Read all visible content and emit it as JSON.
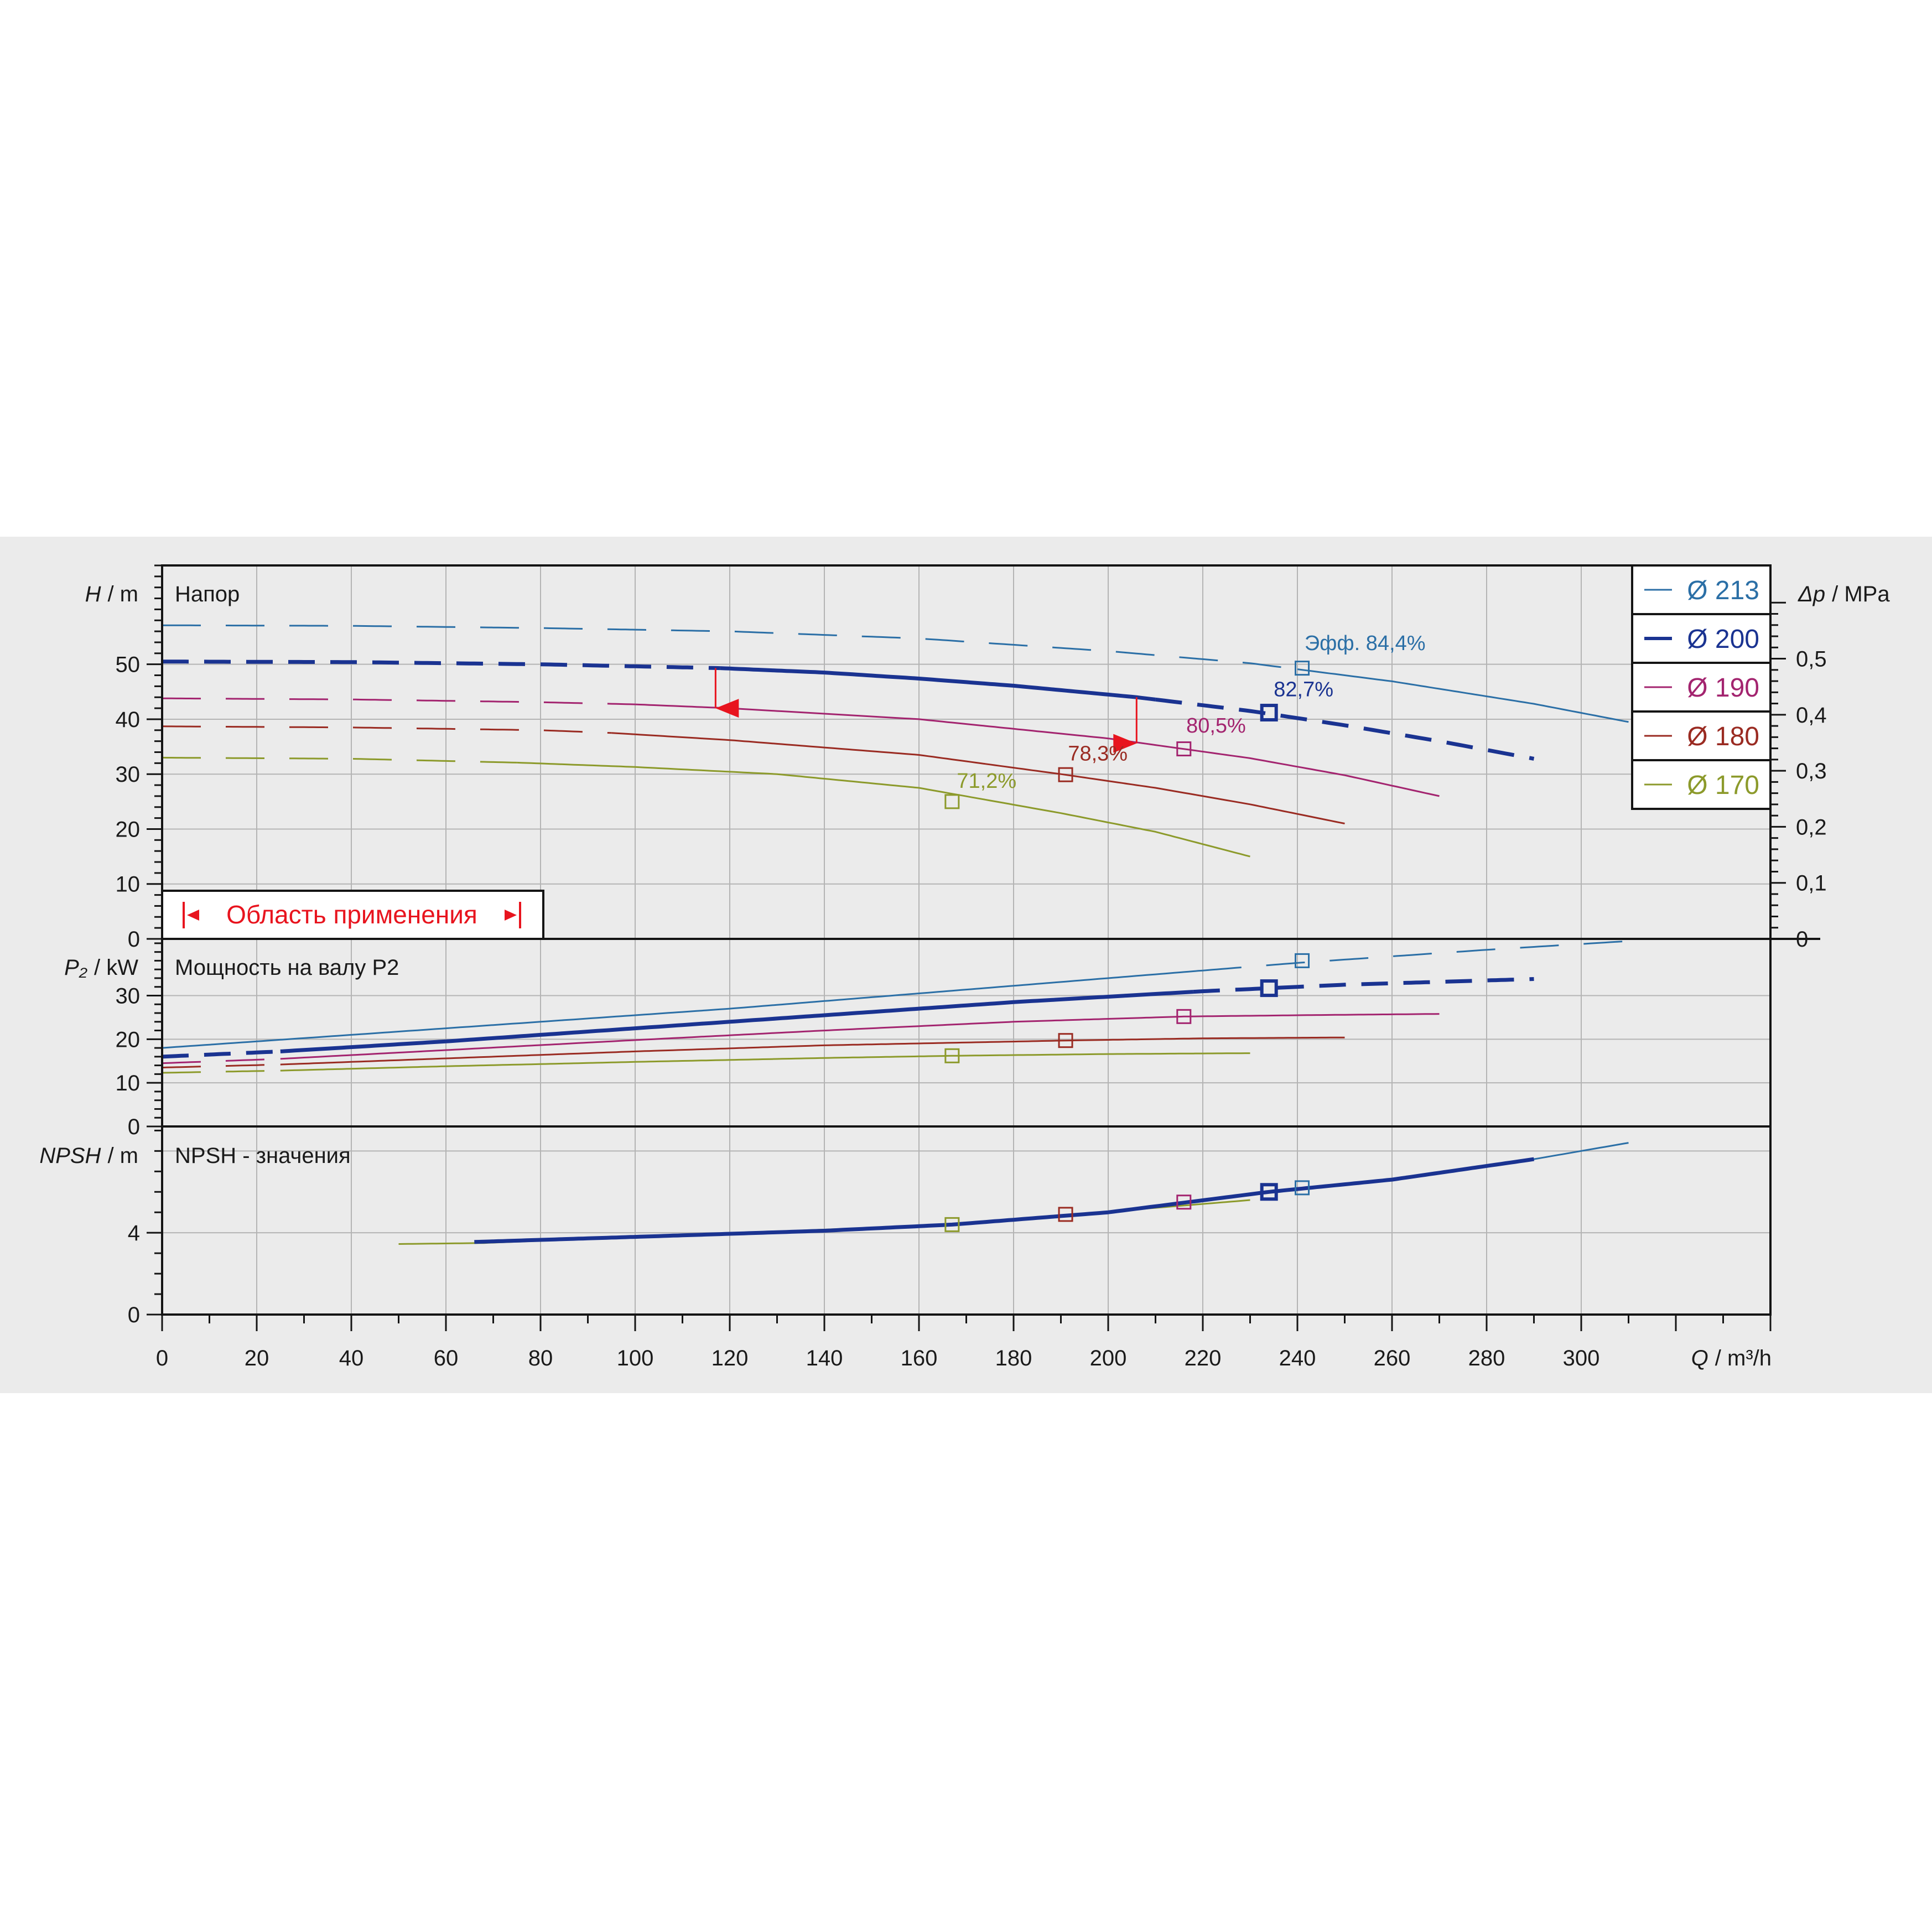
{
  "colors": {
    "d213": "#2b6fa6",
    "d200": "#1a3391",
    "d190": "#a3246f",
    "d180": "#9a2b22",
    "d170": "#8c9a2b",
    "range": "#e8141e",
    "grid": "#b4b4b4",
    "frame": "#141414"
  },
  "chart_data": [
    {
      "type": "line",
      "panel": "head",
      "title": "Напор",
      "ylabel_symbol": "H",
      "ylabel_unit": "/ m",
      "y2label_symbol": "Δp",
      "y2label_unit": "/ MPa",
      "xlim": [
        0,
        340
      ],
      "ylim": [
        0,
        68
      ],
      "y2lim": [
        0,
        0.6664
      ],
      "yticks": [
        0,
        10,
        20,
        30,
        40,
        50
      ],
      "y2ticks": [
        "0",
        "0,1",
        "0,2",
        "0,3",
        "0,4",
        "0,5"
      ],
      "y2tick_values": [
        0,
        0.1,
        0.2,
        0.3,
        0.4,
        0.5
      ],
      "grid": true,
      "legend_position": "top-right",
      "series": [
        {
          "name": "Ø 213",
          "color_key": "d213",
          "dash_until": 240,
          "x": [
            0,
            40,
            80,
            120,
            160,
            200,
            230,
            260,
            290,
            310
          ],
          "y": [
            57.1,
            57.0,
            56.6,
            56.0,
            54.7,
            52.4,
            50.2,
            46.9,
            42.8,
            39.5
          ]
        },
        {
          "name": "Ø 200",
          "color_key": "d200",
          "dash_from": 210,
          "dash_until": 118,
          "x": [
            0,
            40,
            80,
            118,
            140,
            160,
            180,
            206,
            230,
            250,
            270,
            290
          ],
          "y": [
            50.5,
            50.4,
            50.0,
            49.3,
            48.5,
            47.4,
            46.1,
            44.0,
            41.5,
            38.9,
            36.0,
            32.8
          ]
        },
        {
          "name": "Ø 190",
          "color_key": "d190",
          "dash_until": 100,
          "x": [
            0,
            40,
            80,
            100,
            120,
            160,
            200,
            230,
            250,
            270
          ],
          "y": [
            43.8,
            43.6,
            43.1,
            42.7,
            42.0,
            40.0,
            36.5,
            32.9,
            29.8,
            26.0
          ]
        },
        {
          "name": "Ø 180",
          "color_key": "d180",
          "dash_until": 95,
          "x": [
            0,
            40,
            80,
            95,
            120,
            160,
            190,
            210,
            230,
            250
          ],
          "y": [
            38.7,
            38.5,
            38.0,
            37.5,
            36.2,
            33.5,
            30.0,
            27.5,
            24.5,
            21.0
          ]
        },
        {
          "name": "Ø 170",
          "color_key": "d170",
          "dash_until": 75,
          "x": [
            0,
            40,
            75,
            100,
            130,
            160,
            190,
            210,
            230
          ],
          "y": [
            33.0,
            32.8,
            32.1,
            31.3,
            30.0,
            27.5,
            22.9,
            19.5,
            15.0
          ]
        }
      ],
      "best_efficiency_points": [
        {
          "series_key": "d213",
          "x": 241,
          "y": 49.3,
          "label": "Эфф.  84,4%",
          "label_dx": 0.5,
          "label_dy": 3.3
        },
        {
          "series_key": "d200",
          "x": 234,
          "y": 41.2,
          "label": "82,7%",
          "label_dx": 1,
          "label_dy": 3.0
        },
        {
          "series_key": "d190",
          "x": 216,
          "y": 34.6,
          "label": "80,5%",
          "label_dx": 0.5,
          "label_dy": 3.0
        },
        {
          "series_key": "d180",
          "x": 191,
          "y": 29.9,
          "label": "78,3%",
          "label_dx": 0.5,
          "label_dy": 2.6
        },
        {
          "series_key": "d170",
          "x": 167,
          "y": 25.0,
          "label": "71,2%",
          "label_dx": 1,
          "label_dy": 2.5
        }
      ],
      "application_range": {
        "label": "Область применения",
        "q_min": 117,
        "q_max": 206,
        "h_min_at_qmin": 42.0,
        "h_max_at_qmin": 49.3,
        "h_min_at_qmax": 35.6,
        "h_max_at_qmax": 44.0
      }
    },
    {
      "type": "line",
      "panel": "power",
      "title": "Мощность на валу P2",
      "ylabel_symbol": "P₂",
      "ylabel_unit": "/ kW",
      "xlim": [
        0,
        340
      ],
      "ylim": [
        0,
        43
      ],
      "yticks": [
        0,
        10,
        20,
        30
      ],
      "grid": true,
      "series": [
        {
          "name": "Ø 213",
          "color_key": "d213",
          "dash_from": 220,
          "x": [
            0,
            40,
            80,
            120,
            160,
            200,
            240,
            280,
            310
          ],
          "y": [
            18.0,
            21.0,
            24.0,
            27.0,
            30.5,
            34.0,
            37.5,
            40.5,
            42.5
          ]
        },
        {
          "name": "Ø 200",
          "color_key": "d200",
          "dash_from": 218,
          "dash_until": 25,
          "x": [
            0,
            25,
            60,
            100,
            140,
            180,
            220,
            250,
            290
          ],
          "y": [
            16.0,
            17.2,
            19.5,
            22.5,
            25.5,
            28.5,
            31.0,
            32.5,
            33.8
          ]
        },
        {
          "name": "Ø 190",
          "color_key": "d190",
          "dash_until": 25,
          "x": [
            0,
            25,
            60,
            100,
            140,
            180,
            216,
            240,
            270
          ],
          "y": [
            14.5,
            15.5,
            17.5,
            19.8,
            22.0,
            24.0,
            25.2,
            25.5,
            25.8
          ]
        },
        {
          "name": "Ø 180",
          "color_key": "d180",
          "dash_until": 25,
          "x": [
            0,
            25,
            60,
            100,
            140,
            191,
            220,
            250
          ],
          "y": [
            13.5,
            14.2,
            15.6,
            17.2,
            18.6,
            19.7,
            20.2,
            20.4
          ]
        },
        {
          "name": "Ø 170",
          "color_key": "d170",
          "dash_until": 25,
          "x": [
            0,
            25,
            60,
            100,
            140,
            167,
            200,
            230
          ],
          "y": [
            12.3,
            12.8,
            13.8,
            14.8,
            15.7,
            16.2,
            16.6,
            16.8
          ]
        }
      ],
      "markers": [
        {
          "series_key": "d213",
          "x": 241,
          "y": 38.0
        },
        {
          "series_key": "d200",
          "x": 234,
          "y": 31.7
        },
        {
          "series_key": "d190",
          "x": 216,
          "y": 25.2
        },
        {
          "series_key": "d180",
          "x": 191,
          "y": 19.7
        },
        {
          "series_key": "d170",
          "x": 167,
          "y": 16.2
        }
      ]
    },
    {
      "type": "line",
      "panel": "npsh",
      "title": "NPSH - значения",
      "ylabel_symbol": "NPSH",
      "ylabel_unit": "/ m",
      "xlabel_symbol": "Q",
      "xlabel_unit": "/ m³/h",
      "xlim": [
        0,
        340
      ],
      "ylim": [
        0,
        9.2
      ],
      "yticks": [
        0,
        4
      ],
      "xticks": [
        0,
        20,
        40,
        60,
        80,
        100,
        120,
        140,
        160,
        180,
        200,
        220,
        240,
        260,
        280,
        300
      ],
      "grid": true,
      "series": [
        {
          "name": "Ø 170",
          "color_key": "d170",
          "x": [
            50,
            68,
            167,
            230
          ],
          "y": [
            3.45,
            3.5,
            4.4,
            5.6
          ]
        },
        {
          "name": "Ø 213",
          "color_key": "d213",
          "x": [
            240,
            260,
            290,
            310
          ],
          "y": [
            6.1,
            6.6,
            7.6,
            8.4
          ]
        },
        {
          "name": "Ø 200",
          "color_key": "d200",
          "x": [
            66,
            100,
            140,
            167,
            200,
            234,
            260,
            290
          ],
          "y": [
            3.55,
            3.8,
            4.1,
            4.4,
            5.0,
            6.0,
            6.6,
            7.6
          ]
        }
      ],
      "markers": [
        {
          "series_key": "d170",
          "x": 167,
          "y": 4.4
        },
        {
          "series_key": "d180",
          "x": 191,
          "y": 4.9
        },
        {
          "series_key": "d190",
          "x": 216,
          "y": 5.5
        },
        {
          "series_key": "d200",
          "x": 234,
          "y": 6.0
        },
        {
          "series_key": "d213",
          "x": 241,
          "y": 6.2
        }
      ]
    }
  ]
}
